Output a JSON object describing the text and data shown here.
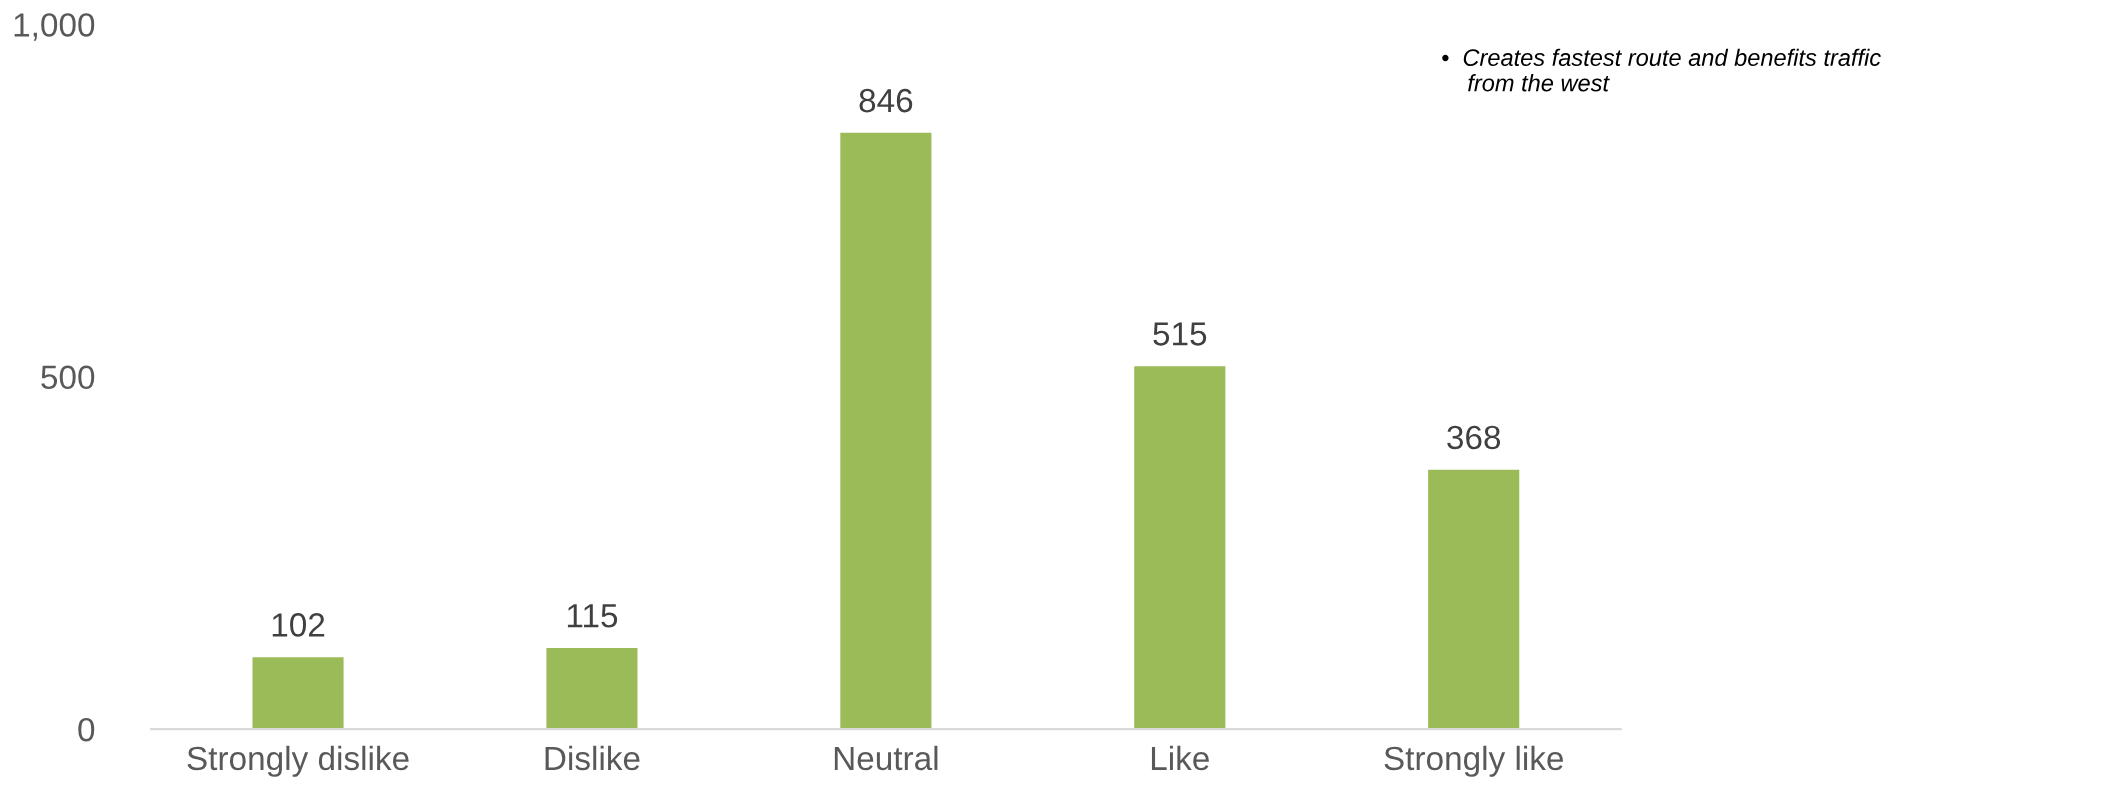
{
  "chart_data": {
    "type": "bar",
    "categories": [
      "Strongly dislike",
      "Dislike",
      "Neutral",
      "Like",
      "Strongly like"
    ],
    "values": [
      102,
      115,
      846,
      515,
      368
    ],
    "color": "#9bbb59",
    "ylim": [
      0,
      1000
    ],
    "yticks": [
      0,
      500,
      {
        "value": 1000,
        "label": "1,000"
      }
    ],
    "data_labels": true,
    "grid": false,
    "legend": false,
    "annotations": [
      "•  Creates fastest route and benefits traffic\n    from the west"
    ]
  }
}
